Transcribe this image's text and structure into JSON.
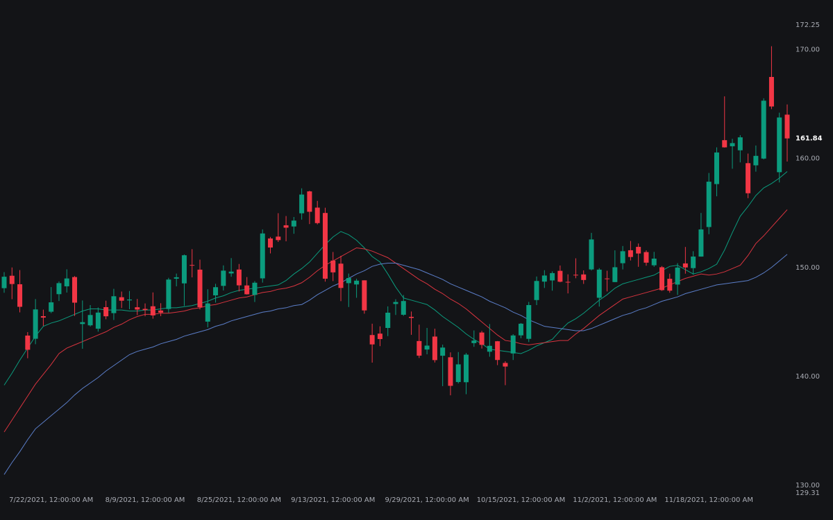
{
  "chart_data": {
    "type": "candlestick",
    "x": [
      null,
      null,
      null,
      null,
      null,
      null,
      "7/22/2021, 12:00:00 AM",
      null,
      null,
      null,
      null,
      null,
      null,
      null,
      null,
      null,
      null,
      null,
      "8/9/2021, 12:00:00 AM",
      null,
      null,
      null,
      null,
      null,
      null,
      null,
      null,
      null,
      null,
      null,
      "8/25/2021, 12:00:00 AM",
      null,
      null,
      null,
      null,
      null,
      null,
      null,
      null,
      null,
      null,
      null,
      "9/13/2021, 12:00:00 AM",
      null,
      null,
      null,
      null,
      null,
      null,
      null,
      null,
      null,
      null,
      null,
      "9/29/2021, 12:00:00 AM",
      null,
      null,
      null,
      null,
      null,
      null,
      null,
      null,
      null,
      null,
      null,
      "10/15/2021, 12:00:00 AM",
      null,
      null,
      null,
      null,
      null,
      null,
      null,
      null,
      null,
      null,
      null,
      "11/2/2021, 12:00:00 AM",
      null,
      null,
      null,
      null,
      null,
      null,
      null,
      null,
      null,
      null,
      null,
      "11/18/2021, 12:00:00 AM",
      null,
      null,
      null,
      null,
      null,
      null,
      null,
      null,
      null,
      null
    ],
    "open": [
      148.1,
      149.24,
      148.46,
      143.75,
      143.46,
      145.53,
      145.94,
      147.55,
      148.27,
      149.12,
      144.81,
      144.69,
      144.38,
      146.36,
      145.81,
      147.27,
      146.98,
      146.35,
      146.2,
      146.44,
      146.05,
      146.19,
      148.97,
      148.54,
      150.23,
      149.8,
      145.03,
      147.44,
      148.31,
      149.45,
      149.81,
      148.35,
      147.48,
      149,
      152.66,
      152.83,
      153.87,
      153.76,
      154.97,
      156.98,
      155.49,
      155,
      150.63,
      150.35,
      148.56,
      148.44,
      148.82,
      143.8,
      143.93,
      144.45,
      146.65,
      145.66,
      145.47,
      143.25,
      142.47,
      143.66,
      141.9,
      141.76,
      139.49,
      139.47,
      143.06,
      144.03,
      142.27,
      143.23,
      141.24,
      142.11,
      143.77,
      143.45,
      147.01,
      148.7,
      148.81,
      149.69,
      148.68,
      149.33,
      149.36,
      149.82,
      147.22,
      148.99,
      148.66,
      150.39,
      151.58,
      151.89,
      151.41,
      150.2,
      150.02,
      148.96,
      148.43,
      150.37,
      149.94,
      151,
      153.71,
      157.65,
      161.68,
      161.12,
      160.75,
      159.57,
      159.37,
      159.99,
      167.48,
      158.74,
      164.02
    ],
    "high": [
      149.57,
      150,
      149.76,
      144.07,
      147.1,
      146.13,
      148.2,
      148.72,
      149.83,
      149.21,
      146.97,
      146.55,
      146.33,
      146.95,
      148.04,
      147.79,
      147.84,
      147.11,
      146.7,
      147.71,
      146.72,
      149.05,
      149.44,
      151.19,
      151.68,
      150.72,
      148,
      148.5,
      150.19,
      150.86,
      150.32,
      149.12,
      148.75,
      153.49,
      152.8,
      154.98,
      154.72,
      154.63,
      157.26,
      157.04,
      156.11,
      155.48,
      151.42,
      151.07,
      149.44,
      148.97,
      148.82,
      144.84,
      144.6,
      146.43,
      147.08,
      147.47,
      145.96,
      144.75,
      144.45,
      144.38,
      142.92,
      142.21,
      142.24,
      142.15,
      144.22,
      144.18,
      144.81,
      143.25,
      141.4,
      143.88,
      144.9,
      146.84,
      149.17,
      149.75,
      149.64,
      150.18,
      149.37,
      150.84,
      149.73,
      153.17,
      149.94,
      149.7,
      151.57,
      151.97,
      152.43,
      152.2,
      151.57,
      151.43,
      150.13,
      149.43,
      150.4,
      151.88,
      151.49,
      155,
      158.67,
      161.02,
      165.7,
      161.8,
      162.14,
      160.45,
      161.19,
      165.52,
      170.3,
      164.2,
      164.96
    ],
    "low": [
      147.68,
      147.09,
      145.88,
      141.67,
      142.96,
      144.63,
      145.81,
      146.92,
      147.7,
      145.55,
      142.54,
      144.58,
      144.11,
      145.25,
      145.18,
      146.28,
      146.17,
      145.63,
      145.52,
      145.3,
      145.53,
      145.84,
      148.27,
      146.47,
      149.09,
      146.15,
      144.5,
      146.78,
      147.89,
      149.15,
      147.8,
      147.51,
      146.83,
      148.61,
      151.29,
      152.34,
      152.4,
      153.09,
      154.39,
      153.98,
      153.95,
      148.7,
      148.75,
      146.91,
      146.37,
      147.22,
      145.76,
      141.27,
      142.78,
      143.7,
      145.64,
      145.56,
      143.82,
      141.69,
      142.03,
      141.28,
      139.11,
      138.27,
      139.36,
      138.37,
      142.72,
      142.56,
      141.81,
      141.04,
      139.2,
      141.51,
      143.51,
      143.16,
      146.55,
      148.12,
      147.87,
      148.64,
      147.62,
      149.01,
      148.49,
      149.72,
      146.41,
      147.8,
      148.65,
      149.82,
      150.64,
      150.06,
      150.16,
      150.06,
      147.85,
      147.68,
      147.48,
      149.43,
      149.34,
      150.99,
      153.05,
      156.53,
      161,
      159.06,
      159.64,
      156.36,
      158.79,
      159.92,
      164.53,
      157.8,
      159.72
    ],
    "close": [
      149.15,
      148.48,
      146.39,
      142.45,
      146.15,
      145.4,
      146.8,
      148.56,
      148.99,
      146.77,
      144.98,
      145.64,
      145.86,
      145.52,
      147.36,
      146.95,
      147.06,
      146.14,
      146.09,
      145.6,
      145.86,
      148.89,
      149.1,
      151.12,
      150.19,
      146.36,
      146.7,
      148.19,
      149.71,
      149.62,
      148.36,
      147.54,
      148.6,
      153.12,
      151.83,
      152.51,
      153.65,
      154.3,
      156.69,
      155.11,
      154.07,
      148.97,
      149.55,
      148.12,
      149.03,
      148.79,
      146.06,
      142.94,
      143.43,
      145.85,
      146.83,
      146.92,
      145.37,
      141.91,
      142.83,
      141.5,
      142.65,
      139.14,
      141.11,
      142,
      143.29,
      142.9,
      142.81,
      141.51,
      140.91,
      143.76,
      144.84,
      146.55,
      148.76,
      149.26,
      149.48,
      148.69,
      148.64,
      149.32,
      148.85,
      152.57,
      149.8,
      148.96,
      150.02,
      151.49,
      150.96,
      151.28,
      150.44,
      150.81,
      147.92,
      147.87,
      149.99,
      150,
      151,
      153.49,
      157.87,
      160.55,
      161.02,
      161.41,
      161.94,
      156.81,
      160.24,
      165.3,
      164.77,
      163.76,
      161.84
    ],
    "up_color": "#0b9c7e",
    "down_color": "#f23645",
    "series": [
      {
        "color": "#0b9c7e",
        "values": [
          139.2,
          140.3,
          141.5,
          142.6,
          143.7,
          144.6,
          144.9,
          145.1,
          145.4,
          145.7,
          146.0,
          146.2,
          146.2,
          146.1,
          146.1,
          146.1,
          146.0,
          146.0,
          146.1,
          146.1,
          146.2,
          146.3,
          146.3,
          146.4,
          146.5,
          146.7,
          146.9,
          147.2,
          147.4,
          147.7,
          147.9,
          148.0,
          148.1,
          148.2,
          148.3,
          148.4,
          148.8,
          149.4,
          149.9,
          150.5,
          151.3,
          152.1,
          152.8,
          153.3,
          153.0,
          152.5,
          151.8,
          151.0,
          150.5,
          149.4,
          148.2,
          147.2,
          147.0,
          146.8,
          146.6,
          146.1,
          145.5,
          145.0,
          144.5,
          143.9,
          143.4,
          143.0,
          142.5,
          142.4,
          142.3,
          142.2,
          142.1,
          142.4,
          142.8,
          143.1,
          143.4,
          144.2,
          144.9,
          145.3,
          145.8,
          146.4,
          147.0,
          147.5,
          148.1,
          148.5,
          148.7,
          148.9,
          149.1,
          149.3,
          149.7,
          150.1,
          150.2,
          149.8,
          149.4,
          149.6,
          149.9,
          150.3,
          151.6,
          153.2,
          154.7,
          155.6,
          156.6,
          157.3,
          157.7,
          158.2,
          158.8
        ]
      },
      {
        "color": "#d9343f",
        "values": [
          134.9,
          136.0,
          137.1,
          138.2,
          139.3,
          140.2,
          141.1,
          142.1,
          142.6,
          142.9,
          143.2,
          143.5,
          143.8,
          144.1,
          144.5,
          144.8,
          145.2,
          145.5,
          145.7,
          145.7,
          145.8,
          145.8,
          145.9,
          146.0,
          146.2,
          146.3,
          146.5,
          146.6,
          146.8,
          147.0,
          147.2,
          147.3,
          147.5,
          147.7,
          147.8,
          148.0,
          148.1,
          148.3,
          148.6,
          149.1,
          149.7,
          150.2,
          150.6,
          151.0,
          151.4,
          151.8,
          151.7,
          151.5,
          151.2,
          150.9,
          150.4,
          149.9,
          149.4,
          148.9,
          148.5,
          148.0,
          147.6,
          147.1,
          146.7,
          146.2,
          145.6,
          145.0,
          144.4,
          143.8,
          143.3,
          143.2,
          143.0,
          142.9,
          143.0,
          143.1,
          143.2,
          143.3,
          143.3,
          143.9,
          144.4,
          145.0,
          145.6,
          146.1,
          146.6,
          147.1,
          147.3,
          147.5,
          147.7,
          147.9,
          148.1,
          148.4,
          148.7,
          149.0,
          149.2,
          149.4,
          149.3,
          149.4,
          149.6,
          149.9,
          150.2,
          151.1,
          152.2,
          152.9,
          153.7,
          154.5,
          155.3
        ]
      },
      {
        "color": "#5b7ec9",
        "values": [
          131.0,
          132.1,
          133.1,
          134.2,
          135.2,
          135.8,
          136.4,
          137.0,
          137.6,
          138.3,
          138.9,
          139.4,
          139.9,
          140.5,
          141.0,
          141.5,
          142.0,
          142.3,
          142.5,
          142.7,
          143.0,
          143.2,
          143.4,
          143.7,
          143.9,
          144.1,
          144.3,
          144.6,
          144.8,
          145.1,
          145.3,
          145.5,
          145.7,
          145.9,
          146.0,
          146.2,
          146.3,
          146.5,
          146.6,
          147.0,
          147.5,
          147.9,
          148.3,
          148.6,
          149.0,
          149.4,
          149.7,
          150.1,
          150.3,
          150.4,
          150.4,
          150.2,
          150.0,
          149.8,
          149.5,
          149.2,
          148.9,
          148.5,
          148.2,
          147.9,
          147.6,
          147.3,
          146.9,
          146.6,
          146.3,
          145.9,
          145.6,
          145.2,
          144.9,
          144.6,
          144.5,
          144.4,
          144.3,
          144.2,
          144.2,
          144.4,
          144.7,
          145.0,
          145.3,
          145.6,
          145.8,
          146.1,
          146.3,
          146.6,
          146.9,
          147.1,
          147.3,
          147.6,
          147.8,
          148.0,
          148.2,
          148.4,
          148.5,
          148.6,
          148.7,
          148.8,
          149.1,
          149.5,
          150.0,
          150.6,
          151.2
        ]
      }
    ],
    "ylim": [
      129.31,
      172.25
    ],
    "yticks": [
      172.25,
      {
        "value": 170,
        "label": "170.00"
      },
      {
        "value": 160,
        "label": "160.00"
      },
      {
        "value": 150,
        "label": "150.00"
      },
      {
        "value": 140,
        "label": "140.00"
      },
      {
        "value": 130,
        "label": "130.00"
      },
      129.31
    ]
  }
}
